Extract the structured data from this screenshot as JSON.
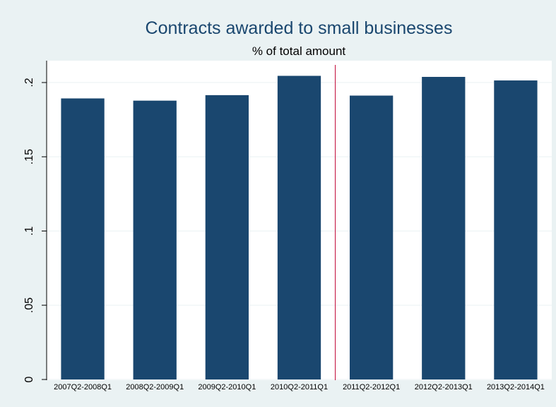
{
  "colors": {
    "background": "#eaf2f3",
    "plot_background": "#ffffff",
    "bar": "#1a476f",
    "title": "#1a476f",
    "reference_line": "#c10534",
    "gridline": "#eaf2f3"
  },
  "chart_data": {
    "type": "bar",
    "title": "Contracts awarded to small businesses",
    "subtitle": "% of total amount",
    "xlabel": "",
    "ylabel": "",
    "categories": [
      "2007Q2-2008Q1",
      "2008Q2-2009Q1",
      "2009Q2-2010Q1",
      "2010Q2-2011Q1",
      "2011Q2-2012Q1",
      "2012Q2-2013Q1",
      "2013Q2-2014Q1"
    ],
    "values": [
      0.1893,
      0.1878,
      0.1915,
      0.2045,
      0.1912,
      0.2038,
      0.2014
    ],
    "ylim": [
      0,
      0.21
    ],
    "yticks": [
      0,
      0.05,
      0.1,
      0.15,
      0.2
    ],
    "ytick_labels": [
      "0",
      ".05",
      ".1",
      ".15",
      ".2"
    ],
    "grid": true,
    "legend": "none",
    "reference_line": {
      "after_category": "2010Q2-2011Q1",
      "orientation": "vertical"
    }
  }
}
